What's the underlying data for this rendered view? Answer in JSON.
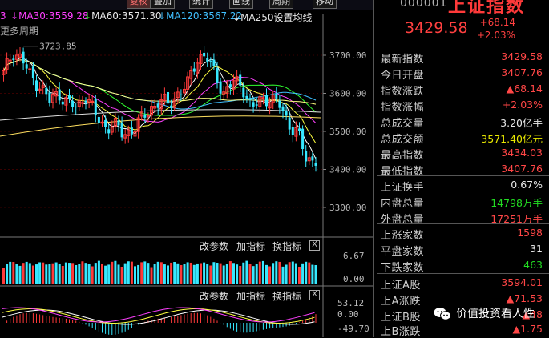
{
  "toolbar": {
    "buttons": [
      {
        "label": "复权",
        "active": true
      },
      {
        "label": "叠加",
        "active": false
      },
      {
        "label": "统计",
        "active": false
      },
      {
        "label": "画线",
        "active": false
      },
      {
        "label": "周期",
        "active": false
      },
      {
        "label": "移动",
        "active": false
      }
    ]
  },
  "legend": {
    "ma30": "MA30:3559.28",
    "ma60": "MA60:3571.30",
    "ma120": "MA120:3567.22",
    "ma250": "MA250",
    "settings": "设置均线",
    "colors": {
      "ma30": "#ff40ff",
      "ma60": "#30ff30",
      "ma120": "#40c0ff",
      "ma250": "#ffffff",
      "up": "#ff3a3a",
      "down": "#36e8ff"
    }
  },
  "left_cutoff": {
    "top_left": "3",
    "period": "更多周期"
  },
  "price_chart": {
    "y_ticks": [
      "3700.00",
      "3600.00",
      "3500.00",
      "3400.00",
      "3300.00"
    ],
    "high_annotation": "3723.85",
    "ylim": [
      3300,
      3740
    ]
  },
  "volume_panel": {
    "buttons": [
      "改参数",
      "加指标",
      "换指标"
    ],
    "close": "X",
    "y_ticks": [
      "6.67",
      "0.00"
    ]
  },
  "macd_panel": {
    "buttons": [
      "改参数",
      "加指标",
      "换指标"
    ],
    "close": "X",
    "y_ticks": [
      "53.12",
      "0.00",
      "-49.70"
    ]
  },
  "right_panel": {
    "code": "000001",
    "name": "上证指数",
    "price": "3429.58",
    "change": "+68.14",
    "change_pct": "+2.03%",
    "rows": [
      {
        "label": "最新指数",
        "value": "3429.58",
        "color": "red"
      },
      {
        "label": "今日开盘",
        "value": "3407.76",
        "color": "red"
      },
      {
        "label": "指数涨跌",
        "value": "▲68.14",
        "color": "red"
      },
      {
        "label": "指数涨幅",
        "value": "+2.03%",
        "color": "red"
      },
      {
        "label": "总成交量",
        "value": "3.20亿手",
        "color": "white"
      },
      {
        "label": "总成交额",
        "value": "3571.40亿元",
        "color": "yellow"
      },
      {
        "label": "最高指数",
        "value": "3434.03",
        "color": "red"
      },
      {
        "label": "最低指数",
        "value": "3407.76",
        "color": "red"
      },
      {
        "label": "上证换手",
        "value": "0.67%",
        "color": "white"
      },
      {
        "label": "内盘总量",
        "value": "14798万手",
        "color": "green"
      },
      {
        "label": "外盘总量",
        "value": "17251万手",
        "color": "red"
      },
      {
        "label": "上涨家数",
        "value": "1598",
        "color": "red"
      },
      {
        "label": "平盘家数",
        "value": "31",
        "color": "white"
      },
      {
        "label": "下跌家数",
        "value": "463",
        "color": "green"
      },
      {
        "label": "上证A股",
        "value": "3594.01",
        "color": "red"
      },
      {
        "label": "上A涨跌",
        "value": "▲71.53",
        "color": "red"
      },
      {
        "label": "上证B股",
        "value": "▲48",
        "color": "red"
      },
      {
        "label": "上B涨跌",
        "value": "▲1.75",
        "color": "red"
      }
    ]
  },
  "watermark": {
    "text": "价值投资看人性",
    "icon": "wechat-icon"
  }
}
